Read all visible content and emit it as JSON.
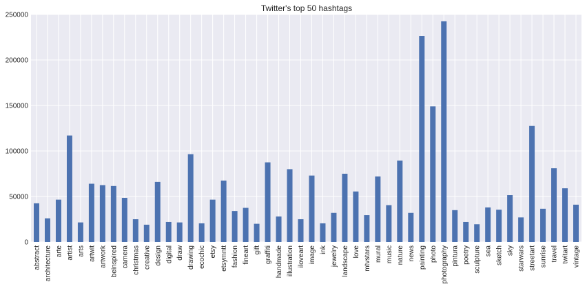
{
  "chart_data": {
    "type": "bar",
    "title": "Twitter's top 50 hashtags",
    "xlabel": "",
    "ylabel": "",
    "ylim": [
      0,
      250000
    ],
    "yticks": [
      "0",
      "50000",
      "100000",
      "150000",
      "200000",
      "250000"
    ],
    "grid": true,
    "categories": [
      "abstract",
      "architecture",
      "arte",
      "artist",
      "arts",
      "artwit",
      "artwork",
      "beinspired",
      "camera",
      "christmas",
      "creative",
      "design",
      "digital",
      "draw",
      "drawing",
      "ecochic",
      "etsy",
      "etsymntt",
      "fashion",
      "fineart",
      "gift",
      "graffiti",
      "handmade",
      "illustration",
      "iloveart",
      "image",
      "ink",
      "jewelry",
      "landscape",
      "love",
      "mtvstars",
      "mural",
      "music",
      "nature",
      "news",
      "painting",
      "photo",
      "photography",
      "pintura",
      "poetry",
      "sculpture",
      "sea",
      "sketch",
      "sky",
      "starwars",
      "streetart",
      "sunrise",
      "travel",
      "twitart",
      "vintage"
    ],
    "values": [
      42500,
      26000,
      46500,
      117000,
      21500,
      64000,
      62500,
      61500,
      48500,
      25000,
      19000,
      66000,
      22000,
      21500,
      96500,
      20500,
      46500,
      67500,
      34000,
      37500,
      20000,
      87500,
      28000,
      80000,
      25000,
      73000,
      20500,
      32000,
      75000,
      55500,
      29500,
      72000,
      40500,
      89500,
      32000,
      226500,
      149000,
      242500,
      35000,
      22000,
      19500,
      38000,
      35500,
      51500,
      27000,
      127500,
      36500,
      81000,
      59000,
      41000
    ],
    "bar_color": "#4c72b0",
    "background_color": "#eaeaf2",
    "grid_color": "#ffffff"
  }
}
